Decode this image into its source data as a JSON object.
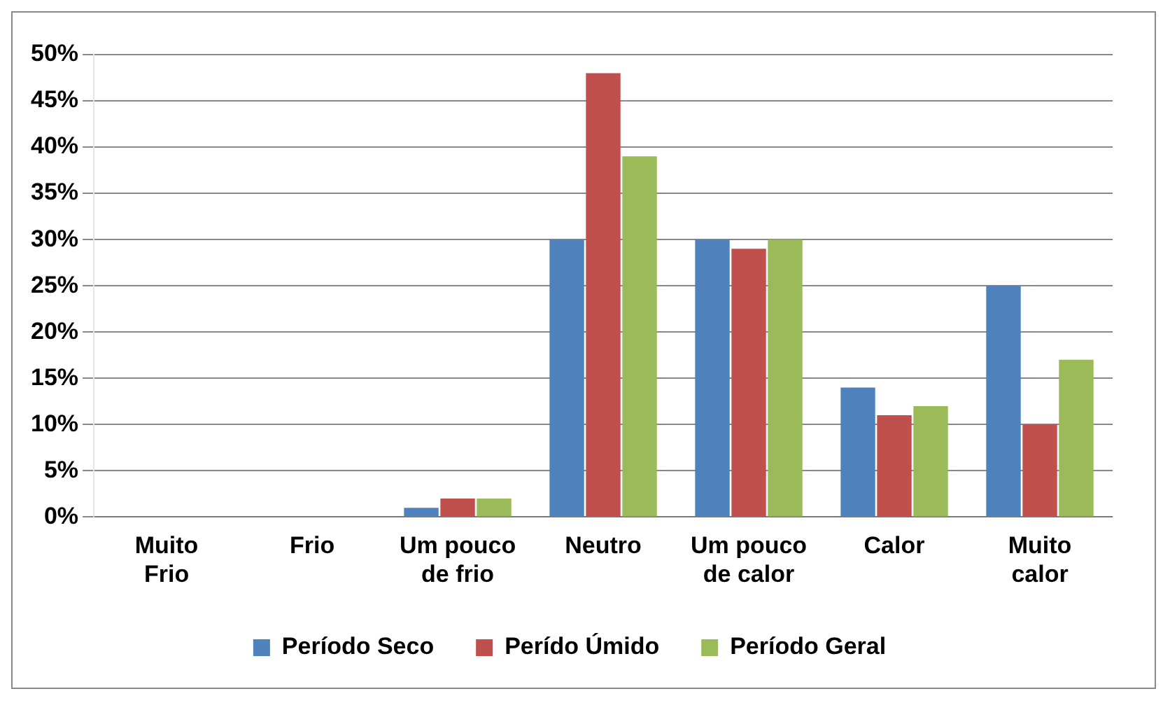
{
  "chart_data": {
    "type": "bar",
    "categories": [
      "Muito Frio",
      "Frio",
      "Um pouco de frio",
      "Neutro",
      "Um pouco de calor",
      "Calor",
      "Muito calor"
    ],
    "series": [
      {
        "name": "Período Seco",
        "color": "#4f81bd",
        "values": [
          0,
          0,
          1,
          30,
          30,
          14,
          25
        ]
      },
      {
        "name": "Perído Úmido",
        "color": "#c0504d",
        "values": [
          0,
          0,
          2,
          48,
          29,
          11,
          10
        ]
      },
      {
        "name": "Período Geral",
        "color": "#9bbb59",
        "values": [
          0,
          0,
          2,
          39,
          30,
          12,
          17
        ]
      }
    ],
    "ylim": [
      0,
      50
    ],
    "yticks": [
      {
        "value": 0,
        "label": "0%"
      },
      {
        "value": 5,
        "label": "5%"
      },
      {
        "value": 10,
        "label": "10%"
      },
      {
        "value": 15,
        "label": "15%"
      },
      {
        "value": 20,
        "label": "20%"
      },
      {
        "value": 25,
        "label": "25%"
      },
      {
        "value": 30,
        "label": "30%"
      },
      {
        "value": 35,
        "label": "35%"
      },
      {
        "value": 40,
        "label": "40%"
      },
      {
        "value": 45,
        "label": "45%"
      },
      {
        "value": 50,
        "label": "50%"
      }
    ],
    "grid": "y",
    "legend": "bottom"
  }
}
